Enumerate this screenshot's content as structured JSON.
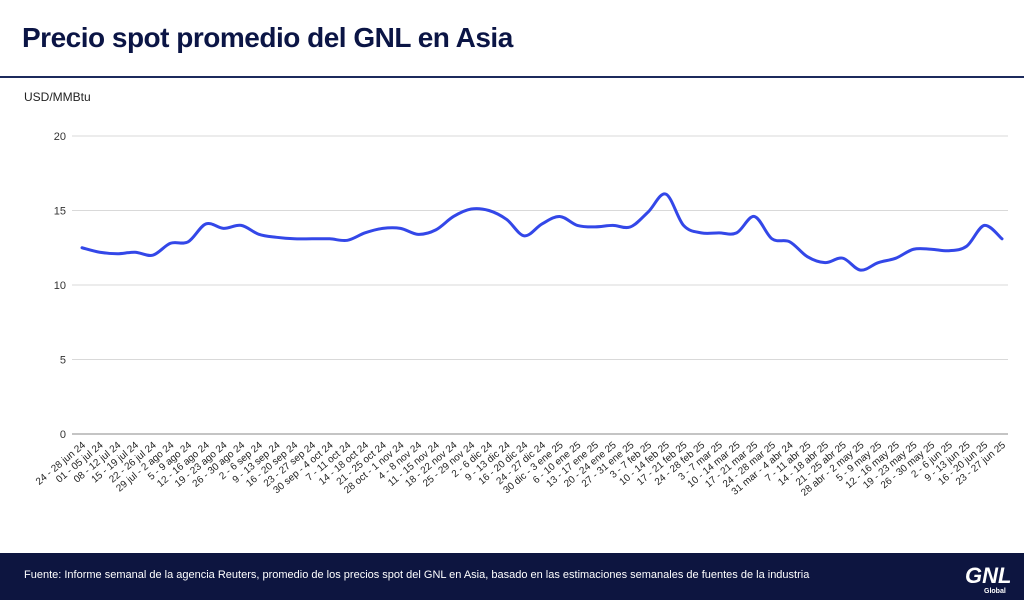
{
  "header": {
    "title": "Precio spot promedio del GNL en Asia"
  },
  "footer": {
    "source": "Fuente: Informe semanal de la agencia Reuters, promedio de los precios spot del GNL en Asia, basado en las estimaciones semanales de fuentes de la industria"
  },
  "logo": {
    "text": "GNL",
    "subtext": "Global"
  },
  "colors": {
    "line": "#3347e8",
    "title": "#0b1545",
    "footer_bg": "#0d1540",
    "grid": "#d9d9d9"
  },
  "chart_data": {
    "type": "line",
    "title": "Precio spot promedio del GNL en Asia",
    "ylabel": "USD/MMBtu",
    "xlabel": "",
    "ylim": [
      0,
      20
    ],
    "yticks": [
      0,
      5,
      10,
      15,
      20
    ],
    "grid": true,
    "legend": "none",
    "categories": [
      "24 - 28 jun 24",
      "01 - 05 jul 24",
      "08 - 12 jul 24",
      "15 - 19 jul 24",
      "22 - 26 jul 24",
      "29 jul - 2 ago 24",
      "5 - 9 ago 24",
      "12 - 16 ago 24",
      "19 - 23 ago 24",
      "26 - 30 ago 24",
      "2 - 6 sep 24",
      "9 - 13 sep 24",
      "16 - 20 sep 24",
      "23 - 27 sep 24",
      "30 sep - 4 oct 24",
      "7 - 11 oct 24",
      "14 - 18 oct 24",
      "21 - 25 oct 24",
      "28 oct - 1 nov 24",
      "4 - 8 nov 24",
      "11 - 15 nov 24",
      "18 - 22 nov 24",
      "25 - 29 nov 24",
      "2 - 6 dic 24",
      "9 - 13 dic 24",
      "16 - 20 dic 24",
      "24 - 27 dic 24",
      "30 dic - 3 ene 25",
      "6 - 10 ene 25",
      "13 - 17 ene 25",
      "20 - 24 ene 25",
      "27 - 31 ene 25",
      "3 - 7 feb 25",
      "10 - 14 feb 25",
      "17 - 21 feb 25",
      "24 - 28 feb 25",
      "3 - 7 mar 25",
      "10 - 14 mar 25",
      "17 - 21 mar 25",
      "24 - 28 mar 25",
      "31 mar - 4 abr 24",
      "7 - 11 abr 25",
      "14 - 18 abr 25",
      "21 - 25 abr 25",
      "28 abr - 2 may 25",
      "5 - 9 may 25",
      "12 - 16 may 25",
      "19 - 23 may 25",
      "26 - 30 may 25",
      "2 - 6 jun 25",
      "9 - 13 jun 25",
      "16 - 20 jun 25",
      "23 - 27 jun 25"
    ],
    "series": [
      {
        "values": [
          12.5,
          12.2,
          12.1,
          12.2,
          12.0,
          12.8,
          12.9,
          14.1,
          13.8,
          14.0,
          13.4,
          13.2,
          13.1,
          13.1,
          13.1,
          13.0,
          13.5,
          13.8,
          13.8,
          13.4,
          13.7,
          14.6,
          15.1,
          15.0,
          14.4,
          13.3,
          14.1,
          14.6,
          14.0,
          13.9,
          14.0,
          13.9,
          14.9,
          16.1,
          14.0,
          13.5,
          13.5,
          13.5,
          14.6,
          13.1,
          12.9,
          11.9,
          11.5,
          11.8,
          11.0,
          11.5,
          11.8,
          12.4,
          12.4,
          12.3,
          12.6,
          14.0,
          13.1
        ]
      }
    ]
  }
}
